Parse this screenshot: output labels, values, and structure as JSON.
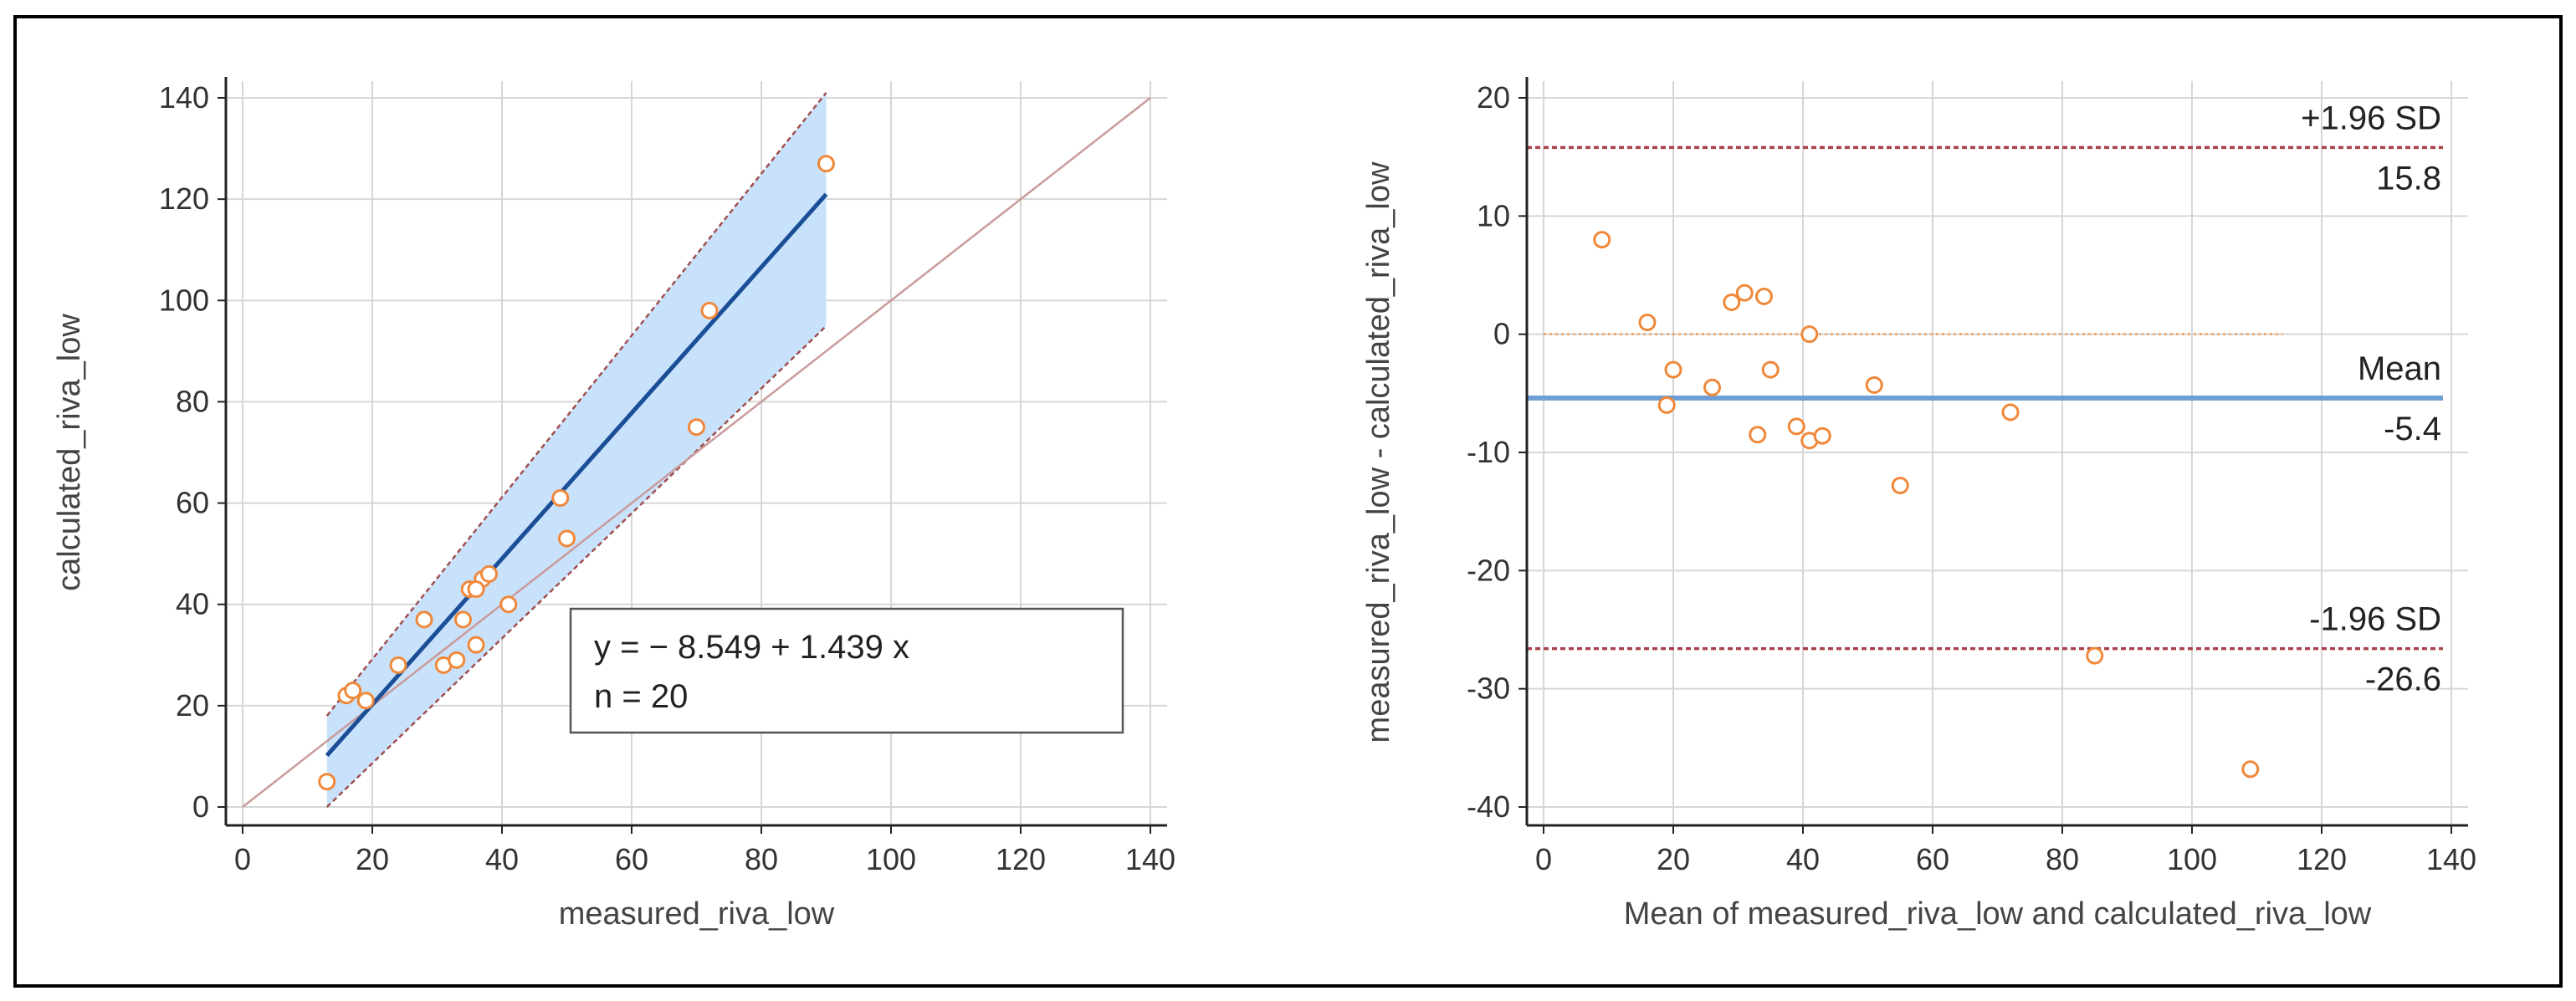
{
  "chart_data": [
    {
      "type": "scatter",
      "title": "",
      "xlabel": "measured_riva_low",
      "ylabel": "calculated_riva_low",
      "xlim": [
        0,
        140
      ],
      "ylim": [
        0,
        140
      ],
      "xticks": [
        0,
        20,
        40,
        60,
        80,
        100,
        120,
        140
      ],
      "yticks": [
        0,
        20,
        40,
        60,
        80,
        100,
        120,
        140
      ],
      "grid": true,
      "points": [
        {
          "x": 13,
          "y": 5
        },
        {
          "x": 16,
          "y": 22
        },
        {
          "x": 17,
          "y": 23
        },
        {
          "x": 19,
          "y": 21
        },
        {
          "x": 24,
          "y": 28
        },
        {
          "x": 28,
          "y": 37
        },
        {
          "x": 31,
          "y": 28
        },
        {
          "x": 33,
          "y": 29
        },
        {
          "x": 34,
          "y": 37
        },
        {
          "x": 35,
          "y": 43
        },
        {
          "x": 36,
          "y": 32
        },
        {
          "x": 37,
          "y": 45
        },
        {
          "x": 38,
          "y": 46
        },
        {
          "x": 41,
          "y": 40
        },
        {
          "x": 49,
          "y": 61
        },
        {
          "x": 50,
          "y": 53
        },
        {
          "x": 70,
          "y": 75
        },
        {
          "x": 72,
          "y": 98
        },
        {
          "x": 90,
          "y": 127
        },
        {
          "x": 36,
          "y": 43
        }
      ],
      "regression": {
        "intercept": -8.549,
        "slope": 1.439,
        "x_range": [
          13,
          90
        ]
      },
      "confidence_band": {
        "x_range": [
          13,
          90
        ],
        "upper": [
          18,
          141
        ],
        "lower": [
          0,
          95
        ]
      },
      "identity_line": {
        "from": [
          0,
          0
        ],
        "to": [
          140,
          140
        ]
      },
      "annotation": {
        "line1": "y = − 8.549  +  1.439  x",
        "line2": "n = 20"
      },
      "colors": {
        "points": "#f0883a",
        "regression": "#1a4e96",
        "band": "#c9e2fb",
        "identity": "#c99a9a",
        "band_edge": "#a05050"
      }
    },
    {
      "type": "scatter",
      "title": "",
      "xlabel": "Mean of measured_riva_low and calculated_riva_low",
      "ylabel": "measured_riva_low - calculated_riva_low",
      "xlim": [
        0,
        140
      ],
      "ylim": [
        -40,
        20
      ],
      "xticks": [
        0,
        20,
        40,
        60,
        80,
        100,
        120,
        140
      ],
      "yticks": [
        20,
        10,
        0,
        -10,
        -20,
        -30,
        -40
      ],
      "grid": true,
      "points": [
        {
          "x": 9,
          "y": 8
        },
        {
          "x": 16,
          "y": 1
        },
        {
          "x": 20,
          "y": -3
        },
        {
          "x": 19,
          "y": -6
        },
        {
          "x": 26,
          "y": -4.5
        },
        {
          "x": 29,
          "y": 2.7
        },
        {
          "x": 31,
          "y": 3.5
        },
        {
          "x": 34,
          "y": 3.2
        },
        {
          "x": 33,
          "y": -8.5
        },
        {
          "x": 35,
          "y": -3
        },
        {
          "x": 39,
          "y": -7.8
        },
        {
          "x": 41,
          "y": 0
        },
        {
          "x": 41,
          "y": -9
        },
        {
          "x": 43,
          "y": -8.6
        },
        {
          "x": 51,
          "y": -4.3
        },
        {
          "x": 55,
          "y": -12.8
        },
        {
          "x": 72,
          "y": -6.6
        },
        {
          "x": 85,
          "y": -27.2
        },
        {
          "x": 109,
          "y": -36.8
        }
      ],
      "zero_line": {
        "y": 0,
        "x_range": [
          0,
          114
        ]
      },
      "mean": {
        "label": "Mean",
        "value_label": "-5.4",
        "value": -5.4
      },
      "upper_loa": {
        "label": "+1.96 SD",
        "value_label": "15.8",
        "value": 15.8
      },
      "lower_loa": {
        "label": "-1.96 SD",
        "value_label": "-26.6",
        "value": -26.6
      },
      "colors": {
        "points": "#f0883a",
        "mean": "#6f9fd6",
        "loa": "#a8404a",
        "zero": "#f0a060"
      }
    }
  ]
}
